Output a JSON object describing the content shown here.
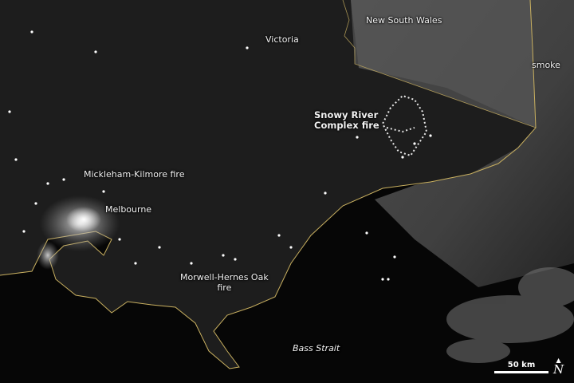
{
  "labels": {
    "victoria": "Victoria",
    "nsw": "New South Wales",
    "smoke": "smoke",
    "snowy_line1": "Snowy River",
    "snowy_line2": "Complex fire",
    "mickleham": "Mickleham-Kilmore fire",
    "melbourne": "Melbourne",
    "morwell_line1": "Morwell-Hernes Oak",
    "morwell_line2": "fire",
    "bass_strait": "Bass Strait"
  },
  "scale_bar": {
    "label": "50 km"
  },
  "north_arrow": {
    "label": "N"
  },
  "colors": {
    "land": "#1c1c1c",
    "ocean": "#050505",
    "smoke": "#6a6a6a",
    "coastline": "#c9b060",
    "city_lights": "#ffffff"
  }
}
